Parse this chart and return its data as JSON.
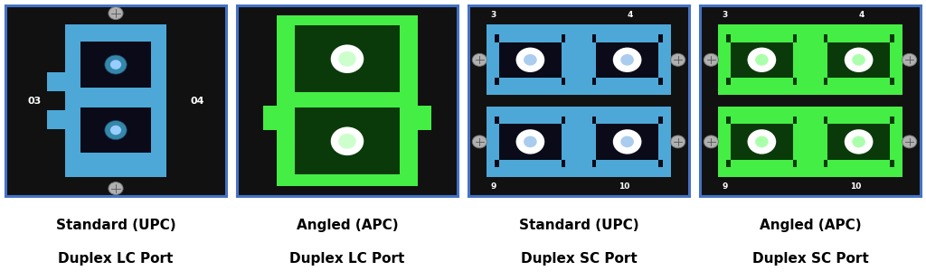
{
  "figsize": [
    10.24,
    3.1
  ],
  "dpi": 100,
  "background_color": "#ffffff",
  "panels": [
    {
      "title_line1": "Standard (UPC)",
      "title_line2": "Duplex LC Port"
    },
    {
      "title_line1": "Angled (APC)",
      "title_line2": "Duplex LC Port"
    },
    {
      "title_line1": "Standard (UPC)",
      "title_line2": "Duplex SC Port"
    },
    {
      "title_line1": "Angled (APC)",
      "title_line2": "Duplex SC Port"
    }
  ],
  "caption_fontsize": 11,
  "caption_fontweight": "bold",
  "caption_color": "#000000",
  "border_color": "#4472c4",
  "photo_bg": "#111111",
  "blue_connector": "#4da8d8",
  "green_connector": "#44ee44",
  "dark_green_inner": "#0a3a0a",
  "dark_port": "#0a0a18",
  "screw_color": "#b0b0b0"
}
